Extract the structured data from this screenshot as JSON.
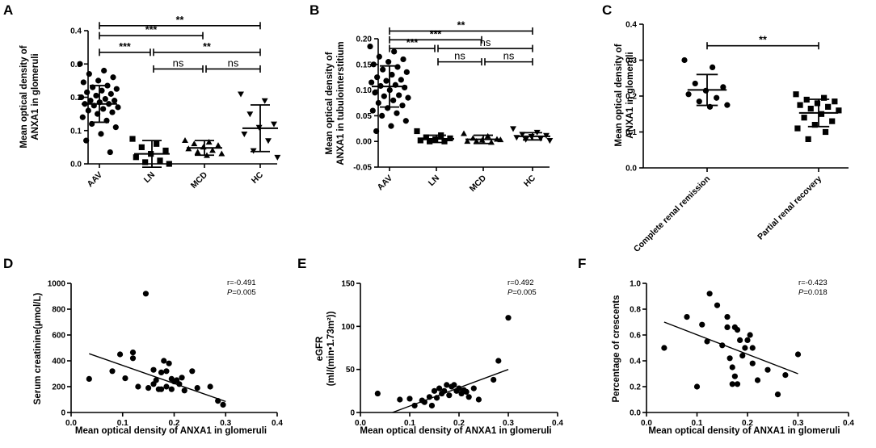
{
  "figure": {
    "panel_labels": [
      "A",
      "B",
      "C",
      "D",
      "E",
      "F"
    ]
  },
  "chart_data": [
    {
      "id": "A",
      "type": "scatter",
      "title": "",
      "ylabel": [
        "Mean optical density of",
        "ANXA1 in glomeruli"
      ],
      "xlabel": "",
      "categories": [
        "AAV",
        "LN",
        "MCD",
        "HC"
      ],
      "ylim": [
        0,
        0.4
      ],
      "yticks": [
        0.0,
        0.1,
        0.2,
        0.3,
        0.4
      ],
      "ytick_labels": [
        "0.0",
        "0.1",
        "0.2",
        "0.3",
        "0.4"
      ],
      "markers": [
        "circle",
        "square",
        "triangle-up",
        "triangle-down"
      ],
      "series": [
        {
          "name": "AAV",
          "values": [
            0.3,
            0.28,
            0.27,
            0.26,
            0.25,
            0.245,
            0.235,
            0.23,
            0.225,
            0.22,
            0.215,
            0.21,
            0.205,
            0.2,
            0.195,
            0.19,
            0.19,
            0.185,
            0.18,
            0.18,
            0.175,
            0.17,
            0.165,
            0.16,
            0.155,
            0.15,
            0.14,
            0.13,
            0.12,
            0.11,
            0.09,
            0.07,
            0.035
          ],
          "mean": 0.18,
          "sd": 0.055
        },
        {
          "name": "LN",
          "values": [
            0.075,
            0.06,
            0.05,
            0.04,
            0.03,
            0.02,
            0.01,
            0.005,
            0.0
          ],
          "mean": 0.03,
          "sd": 0.04
        },
        {
          "name": "MCD",
          "values": [
            0.07,
            0.065,
            0.06,
            0.055,
            0.05,
            0.045,
            0.04,
            0.035,
            0.03,
            0.025
          ],
          "mean": 0.048,
          "sd": 0.022
        },
        {
          "name": "HC",
          "values": [
            0.21,
            0.19,
            0.15,
            0.12,
            0.11,
            0.09,
            0.07,
            0.04,
            0.02
          ],
          "mean": 0.107,
          "sd": 0.07
        }
      ],
      "comparisons": [
        {
          "from": "AAV",
          "to": "HC",
          "label": "**",
          "y": 0.415
        },
        {
          "from": "AAV",
          "to": "MCD",
          "label": "***",
          "y": 0.385
        },
        {
          "from": "AAV",
          "to": "LN",
          "label": "***",
          "y": 0.335
        },
        {
          "from": "LN",
          "to": "HC",
          "label": "**",
          "y": 0.335
        },
        {
          "from": "LN",
          "to": "MCD",
          "label": "ns",
          "y": 0.285
        },
        {
          "from": "MCD",
          "to": "HC",
          "label": "ns",
          "y": 0.285
        }
      ]
    },
    {
      "id": "B",
      "type": "scatter",
      "title": "",
      "ylabel": [
        "Mean optical density of",
        "ANXA1 in tubulointerstitium"
      ],
      "xlabel": "",
      "categories": [
        "AAV",
        "LN",
        "MCD",
        "HC"
      ],
      "ylim": [
        -0.05,
        0.2
      ],
      "yticks": [
        -0.05,
        0.0,
        0.05,
        0.1,
        0.15,
        0.2
      ],
      "ytick_labels": [
        "-0.05",
        "0.00",
        "0.05",
        "0.10",
        "0.15",
        "0.20"
      ],
      "markers": [
        "circle",
        "square",
        "triangle-up",
        "triangle-down"
      ],
      "series": [
        {
          "name": "AAV",
          "values": [
            0.185,
            0.175,
            0.165,
            0.16,
            0.155,
            0.15,
            0.145,
            0.14,
            0.135,
            0.13,
            0.125,
            0.12,
            0.118,
            0.115,
            0.11,
            0.108,
            0.105,
            0.1,
            0.095,
            0.09,
            0.088,
            0.085,
            0.08,
            0.075,
            0.07,
            0.065,
            0.06,
            0.055,
            0.05,
            0.04,
            0.03,
            0.02
          ],
          "mean": 0.107,
          "sd": 0.04
        },
        {
          "name": "LN",
          "values": [
            0.02,
            0.012,
            0.008,
            0.006,
            0.004,
            0.002,
            0.0,
            0.0
          ],
          "mean": 0.005,
          "sd": 0.007
        },
        {
          "name": "MCD",
          "values": [
            0.015,
            0.01,
            0.006,
            0.004,
            0.002,
            0.0,
            -0.002,
            0.0,
            0.003
          ],
          "mean": 0.004,
          "sd": 0.008
        },
        {
          "name": "HC",
          "values": [
            0.025,
            0.018,
            0.014,
            0.012,
            0.01,
            0.008,
            0.006,
            0.004,
            0.002
          ],
          "mean": 0.01,
          "sd": 0.007
        }
      ],
      "comparisons": [
        {
          "from": "AAV",
          "to": "HC",
          "label": "**",
          "y": 0.215
        },
        {
          "from": "AAV",
          "to": "MCD",
          "label": "***",
          "y": 0.198
        },
        {
          "from": "AAV",
          "to": "LN",
          "label": "***",
          "y": 0.181
        },
        {
          "from": "LN",
          "to": "HC",
          "label": "ns",
          "y": 0.181
        },
        {
          "from": "LN",
          "to": "MCD",
          "label": "ns",
          "y": 0.155
        },
        {
          "from": "MCD",
          "to": "HC",
          "label": "ns",
          "y": 0.155
        }
      ]
    },
    {
      "id": "C",
      "type": "scatter",
      "title": "",
      "ylabel": [
        "Mean optical density of",
        "ANXA1 in glomeruli"
      ],
      "xlabel": "",
      "categories": [
        "Complete renal remission",
        "Partial renal recovery"
      ],
      "ylim": [
        0,
        0.4
      ],
      "yticks": [
        0.0,
        0.1,
        0.2,
        0.3,
        0.4
      ],
      "ytick_labels": [
        "0.0",
        "0.1",
        "0.2",
        "0.3",
        "0.4"
      ],
      "markers": [
        "circle",
        "square"
      ],
      "series": [
        {
          "name": "Complete renal remission",
          "values": [
            0.3,
            0.28,
            0.235,
            0.225,
            0.215,
            0.205,
            0.195,
            0.185,
            0.175,
            0.17
          ],
          "mean": 0.217,
          "sd": 0.043
        },
        {
          "name": "Partial renal recovery",
          "values": [
            0.205,
            0.195,
            0.19,
            0.185,
            0.18,
            0.175,
            0.17,
            0.165,
            0.16,
            0.15,
            0.14,
            0.13,
            0.12,
            0.11,
            0.1,
            0.08
          ],
          "mean": 0.153,
          "sd": 0.038
        }
      ],
      "comparisons": [
        {
          "from": "Complete renal remission",
          "to": "Partial renal recovery",
          "label": "**",
          "y": 0.34
        }
      ]
    },
    {
      "id": "D",
      "type": "scatter",
      "title": "",
      "xlabel": "Mean optical density of ANXA1 in glomeruli",
      "ylabel": [
        "Serum creatinine(μmol/L)"
      ],
      "xlim": [
        0.0,
        0.4
      ],
      "ylim": [
        0,
        1000
      ],
      "xticks": [
        0.0,
        0.1,
        0.2,
        0.3,
        0.4
      ],
      "xtick_labels": [
        "0.0",
        "0.1",
        "0.2",
        "0.3",
        "0.4"
      ],
      "yticks": [
        0,
        200,
        400,
        600,
        800,
        1000
      ],
      "ytick_labels": [
        "0",
        "200",
        "400",
        "600",
        "800",
        "1000"
      ],
      "points": [
        [
          0.035,
          260
        ],
        [
          0.08,
          320
        ],
        [
          0.095,
          450
        ],
        [
          0.105,
          265
        ],
        [
          0.12,
          465
        ],
        [
          0.12,
          420
        ],
        [
          0.13,
          200
        ],
        [
          0.145,
          920
        ],
        [
          0.15,
          190
        ],
        [
          0.16,
          330
        ],
        [
          0.16,
          220
        ],
        [
          0.165,
          250
        ],
        [
          0.17,
          180
        ],
        [
          0.175,
          310
        ],
        [
          0.175,
          180
        ],
        [
          0.18,
          400
        ],
        [
          0.185,
          320
        ],
        [
          0.185,
          200
        ],
        [
          0.19,
          380
        ],
        [
          0.195,
          180
        ],
        [
          0.195,
          260
        ],
        [
          0.2,
          240
        ],
        [
          0.205,
          250
        ],
        [
          0.21,
          220
        ],
        [
          0.215,
          270
        ],
        [
          0.22,
          170
        ],
        [
          0.235,
          320
        ],
        [
          0.245,
          190
        ],
        [
          0.27,
          200
        ],
        [
          0.285,
          90
        ],
        [
          0.295,
          60
        ]
      ],
      "fit": [
        [
          0.035,
          455
        ],
        [
          0.3,
          85
        ]
      ],
      "annotation": {
        "r": "r=-0.491",
        "p_label": "P",
        "p_value": "=0.005"
      }
    },
    {
      "id": "E",
      "type": "scatter",
      "title": "",
      "xlabel": "Mean optical density of ANXA1 in glomeruli",
      "ylabel": [
        "eGFR",
        "(ml/(min•1.73m²))"
      ],
      "xlim": [
        0.0,
        0.4
      ],
      "ylim": [
        0,
        150
      ],
      "xticks": [
        0.0,
        0.1,
        0.2,
        0.3,
        0.4
      ],
      "xtick_labels": [
        "0.0",
        "0.1",
        "0.2",
        "0.3",
        "0.4"
      ],
      "yticks": [
        0,
        50,
        100,
        150
      ],
      "ytick_labels": [
        "0",
        "50",
        "100",
        "150"
      ],
      "points": [
        [
          0.035,
          22
        ],
        [
          0.08,
          15
        ],
        [
          0.1,
          16
        ],
        [
          0.11,
          8
        ],
        [
          0.125,
          14
        ],
        [
          0.13,
          12
        ],
        [
          0.14,
          18
        ],
        [
          0.145,
          8
        ],
        [
          0.15,
          25
        ],
        [
          0.155,
          17
        ],
        [
          0.16,
          28
        ],
        [
          0.165,
          22
        ],
        [
          0.17,
          25
        ],
        [
          0.175,
          32
        ],
        [
          0.18,
          20
        ],
        [
          0.185,
          30
        ],
        [
          0.19,
          32
        ],
        [
          0.195,
          25
        ],
        [
          0.2,
          28
        ],
        [
          0.205,
          22
        ],
        [
          0.21,
          26
        ],
        [
          0.215,
          24
        ],
        [
          0.22,
          18
        ],
        [
          0.23,
          28
        ],
        [
          0.24,
          15
        ],
        [
          0.27,
          38
        ],
        [
          0.28,
          60
        ],
        [
          0.3,
          110
        ]
      ],
      "fit": [
        [
          0.065,
          0
        ],
        [
          0.3,
          50
        ]
      ],
      "annotation": {
        "r": "r=0.492",
        "p_label": "P",
        "p_value": "=0.005"
      }
    },
    {
      "id": "F",
      "type": "scatter",
      "title": "",
      "xlabel": "Mean optical density of ANXA1 in glomeruli",
      "ylabel": [
        "Percentage of crescents"
      ],
      "xlim": [
        0.0,
        0.4
      ],
      "ylim": [
        0.0,
        1.0
      ],
      "xticks": [
        0.0,
        0.1,
        0.2,
        0.3,
        0.4
      ],
      "xtick_labels": [
        "0.0",
        "0.1",
        "0.2",
        "0.3",
        "0.4"
      ],
      "yticks": [
        0.0,
        0.2,
        0.4,
        0.6,
        0.8,
        1.0
      ],
      "ytick_labels": [
        "0.0",
        "0.2",
        "0.4",
        "0.6",
        "0.8",
        "1.0"
      ],
      "points": [
        [
          0.035,
          0.5
        ],
        [
          0.08,
          0.74
        ],
        [
          0.1,
          0.2
        ],
        [
          0.11,
          0.68
        ],
        [
          0.12,
          0.55
        ],
        [
          0.125,
          0.92
        ],
        [
          0.14,
          0.83
        ],
        [
          0.15,
          0.52
        ],
        [
          0.16,
          0.74
        ],
        [
          0.16,
          0.66
        ],
        [
          0.165,
          0.42
        ],
        [
          0.17,
          0.22
        ],
        [
          0.17,
          0.35
        ],
        [
          0.175,
          0.66
        ],
        [
          0.175,
          0.28
        ],
        [
          0.18,
          0.64
        ],
        [
          0.18,
          0.22
        ],
        [
          0.185,
          0.56
        ],
        [
          0.19,
          0.44
        ],
        [
          0.195,
          0.5
        ],
        [
          0.2,
          0.56
        ],
        [
          0.205,
          0.6
        ],
        [
          0.21,
          0.38
        ],
        [
          0.21,
          0.5
        ],
        [
          0.22,
          0.25
        ],
        [
          0.24,
          0.33
        ],
        [
          0.26,
          0.14
        ],
        [
          0.275,
          0.29
        ],
        [
          0.3,
          0.45
        ]
      ],
      "fit": [
        [
          0.035,
          0.7
        ],
        [
          0.3,
          0.3
        ]
      ],
      "annotation": {
        "r": "r=-0.423",
        "p_label": "P",
        "p_value": "=0.018"
      }
    }
  ]
}
